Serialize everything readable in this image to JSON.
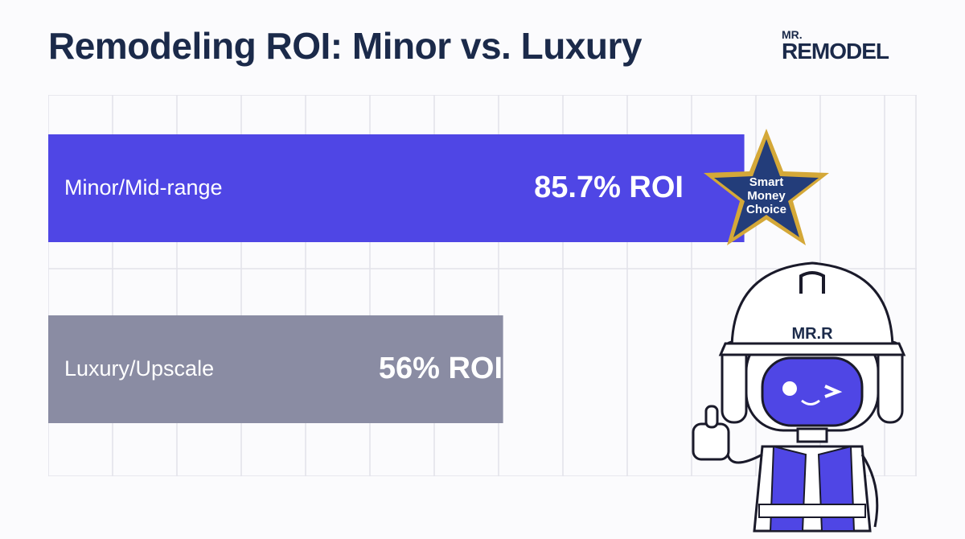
{
  "title": "Remodeling ROI: Minor vs. Luxury",
  "logo": {
    "small": "MR.",
    "main": "REMODEL"
  },
  "colors": {
    "bar_primary": "#4f46e5",
    "bar_secondary": "#8a8ca3",
    "grid": "#e2e2ea",
    "title": "#1b2a4a",
    "badge_gold": "#d4a838",
    "badge_blue": "#233d7a"
  },
  "chart_data": {
    "type": "bar",
    "orientation": "horizontal",
    "categories": [
      "Minor/Mid-range",
      "Luxury/Upscale"
    ],
    "values": [
      85.7,
      56
    ],
    "value_labels": [
      "85.7% ROI",
      "56% ROI"
    ],
    "xlim": [
      0,
      100
    ],
    "grid": true
  },
  "badge": {
    "line1": "Smart",
    "line2": "Money",
    "line3": "Choice"
  },
  "mascot": {
    "helmet_text": "MR.R",
    "icon": "robot-mascot-thumbs-up-icon"
  }
}
